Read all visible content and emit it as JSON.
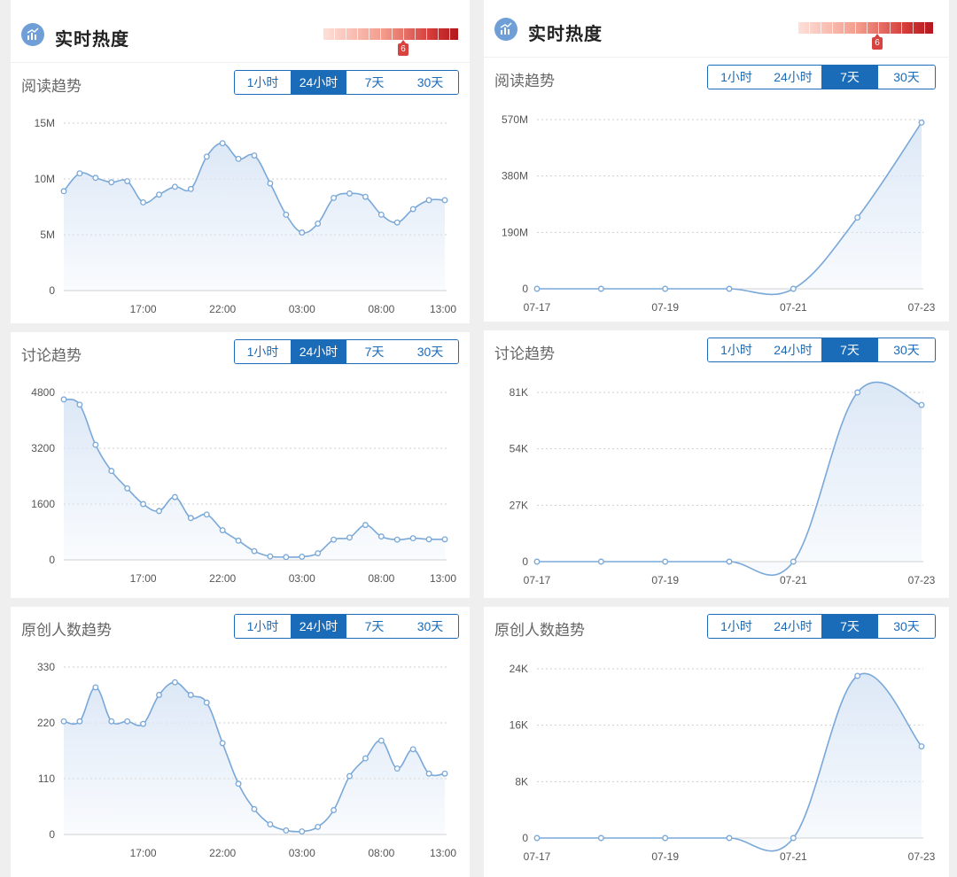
{
  "header": {
    "title": "实时热度",
    "heat_level": "6"
  },
  "colors": {
    "accent": "#1a6bb8",
    "line": "#7aa8d8",
    "area": "#dbe7f6",
    "heat_end": "#b3161d",
    "marker": "#d8433f"
  },
  "tabs": [
    "1小时",
    "24小时",
    "7天",
    "30天"
  ],
  "panels": [
    {
      "active_tab": 1,
      "heat_fraction": 0.58,
      "sections": [
        {
          "title": "阅读趋势",
          "yticks": [
            "0",
            "5M",
            "10M",
            "15M"
          ],
          "xticks": [
            "17:00",
            "22:00",
            "03:00",
            "08:00",
            "13:00"
          ]
        },
        {
          "title": "讨论趋势",
          "yticks": [
            "0",
            "1600",
            "3200",
            "4800"
          ],
          "xticks": [
            "17:00",
            "22:00",
            "03:00",
            "08:00",
            "13:00"
          ]
        },
        {
          "title": "原创人数趋势",
          "yticks": [
            "0",
            "110",
            "220",
            "330"
          ],
          "xticks": [
            "17:00",
            "22:00",
            "03:00",
            "08:00",
            "13:00"
          ]
        }
      ]
    },
    {
      "active_tab": 2,
      "heat_fraction": 0.58,
      "sections": [
        {
          "title": "阅读趋势",
          "yticks": [
            "0",
            "190M",
            "380M",
            "570M"
          ],
          "xticks": [
            "07-17",
            "07-19",
            "07-21",
            "07-23"
          ]
        },
        {
          "title": "讨论趋势",
          "yticks": [
            "0",
            "27K",
            "54K",
            "81K"
          ],
          "xticks": [
            "07-17",
            "07-19",
            "07-21",
            "07-23"
          ]
        },
        {
          "title": "原创人数趋势",
          "yticks": [
            "0",
            "8K",
            "16K",
            "24K"
          ],
          "xticks": [
            "07-17",
            "07-19",
            "07-21",
            "07-23"
          ]
        }
      ]
    }
  ],
  "chart_data": [
    {
      "type": "area",
      "panel": 0,
      "section": 0,
      "x_range": [
        12,
        36
      ],
      "ylim": [
        0,
        15000000
      ],
      "x_tick_values": [
        17,
        22,
        27,
        32,
        37
      ],
      "x": [
        12,
        13,
        14,
        15,
        16,
        17,
        18,
        19,
        20,
        21,
        22,
        23,
        24,
        25,
        26,
        27,
        28,
        29,
        30,
        31,
        32,
        33,
        34,
        35,
        36
      ],
      "values": [
        8900000,
        10500000,
        10100000,
        9700000,
        9800000,
        7900000,
        8600000,
        9300000,
        9100000,
        12000000,
        13200000,
        11800000,
        12100000,
        9600000,
        6800000,
        5200000,
        6000000,
        8300000,
        8700000,
        8400000,
        6800000,
        6100000,
        7300000,
        8100000,
        8100000
      ]
    },
    {
      "type": "area",
      "panel": 0,
      "section": 1,
      "x_range": [
        12,
        36
      ],
      "ylim": [
        0,
        4800
      ],
      "x_tick_values": [
        17,
        22,
        27,
        32,
        37
      ],
      "x": [
        12,
        13,
        14,
        15,
        16,
        17,
        18,
        19,
        20,
        21,
        22,
        23,
        24,
        25,
        26,
        27,
        28,
        29,
        30,
        31,
        32,
        33,
        34,
        35,
        36
      ],
      "values": [
        4600,
        4450,
        3300,
        2550,
        2050,
        1600,
        1400,
        1800,
        1200,
        1300,
        850,
        550,
        250,
        100,
        80,
        90,
        190,
        580,
        640,
        1000,
        670,
        580,
        620,
        590,
        590
      ]
    },
    {
      "type": "area",
      "panel": 0,
      "section": 2,
      "x_range": [
        12,
        36
      ],
      "ylim": [
        0,
        330
      ],
      "x_tick_values": [
        17,
        22,
        27,
        32,
        37
      ],
      "x": [
        12,
        13,
        14,
        15,
        16,
        17,
        18,
        19,
        20,
        21,
        22,
        23,
        24,
        25,
        26,
        27,
        28,
        29,
        30,
        31,
        32,
        33,
        34,
        35,
        36
      ],
      "values": [
        223,
        223,
        290,
        223,
        223,
        218,
        275,
        300,
        275,
        260,
        180,
        100,
        50,
        20,
        8,
        6,
        15,
        48,
        115,
        150,
        185,
        130,
        168,
        120,
        120
      ]
    },
    {
      "type": "area",
      "panel": 1,
      "section": 0,
      "x_range": [
        0,
        6
      ],
      "ylim": [
        0,
        570000000
      ],
      "x_tick_values": [
        0,
        2,
        4,
        6
      ],
      "x": [
        0,
        1,
        2,
        3,
        4,
        5,
        6
      ],
      "values": [
        0,
        0,
        0,
        0,
        0,
        240000000,
        560000000
      ]
    },
    {
      "type": "area",
      "panel": 1,
      "section": 1,
      "x_range": [
        0,
        6
      ],
      "ylim": [
        0,
        81000
      ],
      "x_tick_values": [
        0,
        2,
        4,
        6
      ],
      "x": [
        0,
        1,
        2,
        3,
        4,
        5,
        6
      ],
      "values": [
        0,
        0,
        0,
        0,
        0,
        81000,
        75000
      ]
    },
    {
      "type": "area",
      "panel": 1,
      "section": 2,
      "x_range": [
        0,
        6
      ],
      "ylim": [
        0,
        24000
      ],
      "x_tick_values": [
        0,
        2,
        4,
        6
      ],
      "x": [
        0,
        1,
        2,
        3,
        4,
        5,
        6
      ],
      "values": [
        0,
        0,
        0,
        0,
        0,
        23000,
        13000
      ]
    }
  ]
}
